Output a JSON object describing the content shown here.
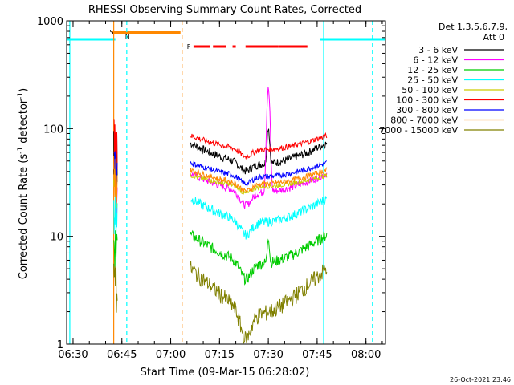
{
  "chart_data": {
    "type": "line",
    "title": "RHESSI Observing Summary Count Rates, Corrected",
    "xlabel": "Start Time (09-Mar-15 06:28:02)",
    "ylabel_main": "Corrected Count Rate (s",
    "ylabel_sup1": "-1",
    "ylabel_mid": " detector",
    "ylabel_sup2": "-1",
    "ylabel_end": ")",
    "yscale": "log",
    "ylim": [
      1,
      1000
    ],
    "xlim": [
      "06:28:02",
      "08:06:00"
    ],
    "x_ticks": [
      "06:30",
      "06:45",
      "07:00",
      "07:15",
      "07:30",
      "07:45",
      "08:00"
    ],
    "y_ticks": [
      "1",
      "10",
      "100",
      "1000"
    ],
    "legend_header": [
      "Det 1,3,5,6,7,9,",
      "Att 0"
    ],
    "series": [
      {
        "name": "3 - 6 keV",
        "color": "#000000",
        "level": 60,
        "amp": 0.22,
        "dip": 0.85
      },
      {
        "name": "6 - 12 keV",
        "color": "#ff00ff",
        "level": 32,
        "amp": 0.2,
        "dip": 0.75
      },
      {
        "name": "12 - 25 keV",
        "color": "#00cc00",
        "level": 8,
        "amp": 0.3,
        "dip": 0.7
      },
      {
        "name": "25 - 50 keV",
        "color": "#00ffff",
        "level": 18,
        "amp": 0.25,
        "dip": 0.75
      },
      {
        "name": "50 - 100 keV",
        "color": "#cccc00",
        "level": 33,
        "amp": 0.12,
        "dip": 0.85
      },
      {
        "name": "100 - 300 keV",
        "color": "#ff0000",
        "level": 75,
        "amp": 0.15,
        "dip": 0.85
      },
      {
        "name": "300 - 800 keV",
        "color": "#0000ff",
        "level": 42,
        "amp": 0.15,
        "dip": 0.85
      },
      {
        "name": "800 - 7000 keV",
        "color": "#ff8800",
        "level": 36,
        "amp": 0.15,
        "dip": 0.85
      },
      {
        "name": "7000 - 15000 keV",
        "color": "#808000",
        "level": 3.5,
        "amp": 0.45,
        "dip": 0.55
      }
    ],
    "data_segment": {
      "start": "07:06",
      "end": "07:48"
    },
    "flags": [
      {
        "label": "S",
        "color": "#ff8800"
      },
      {
        "label": "N",
        "color": "#00ffff"
      },
      {
        "label": "F",
        "color": "#ff0000"
      }
    ],
    "grid": false
  },
  "footer": {
    "date": "26-Oct-2021 23:46"
  }
}
